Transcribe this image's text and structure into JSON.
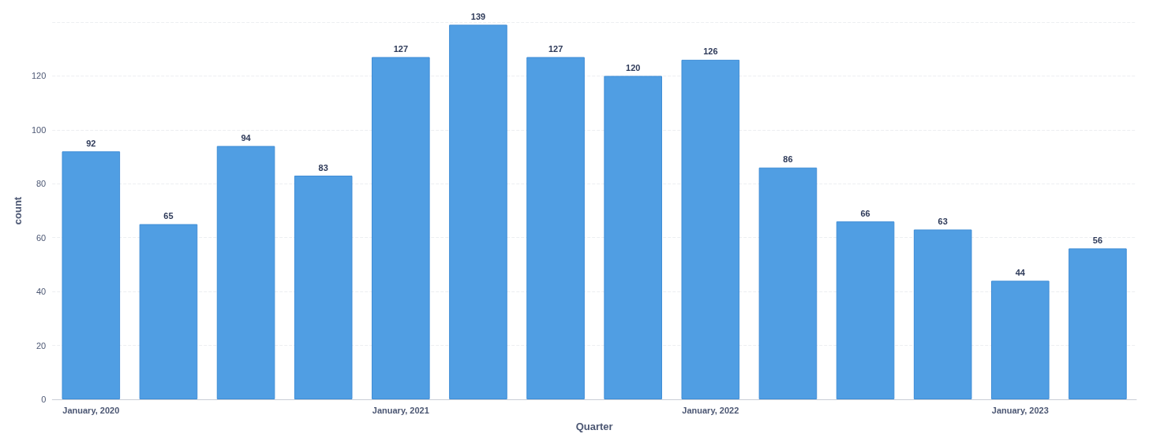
{
  "chart_data": {
    "type": "bar",
    "xlabel": "Quarter",
    "ylabel": "count",
    "categories": [
      "January, 2020",
      null,
      null,
      null,
      "January, 2021",
      null,
      null,
      null,
      "January, 2022",
      null,
      null,
      null,
      "January, 2023",
      null
    ],
    "values": [
      92,
      65,
      94,
      83,
      127,
      139,
      127,
      120,
      126,
      86,
      66,
      63,
      44,
      56
    ],
    "color": "#509ee3",
    "ylim": [
      0,
      140
    ],
    "yticks": [
      0,
      20,
      40,
      60,
      80,
      100,
      120,
      {
        "value": 140,
        "label": null
      }
    ],
    "grid": "y",
    "data_labels": true
  }
}
